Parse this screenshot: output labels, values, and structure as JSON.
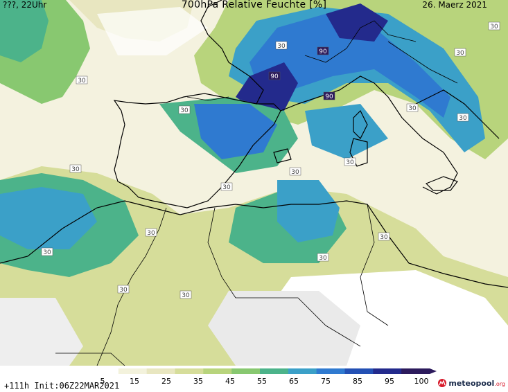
{
  "header": {
    "left": "???, 22Uhr",
    "title": "700hPa Relative Feuchte [%]",
    "date": "26. Maerz 2021"
  },
  "footer": {
    "init": "+111h Init:06Z22MAR2021",
    "logo_text": "meteopool",
    "logo_suffix": ".org"
  },
  "legend": {
    "ticks": [
      "5",
      "15",
      "25",
      "35",
      "45",
      "55",
      "65",
      "75",
      "85",
      "95",
      "100"
    ],
    "colors": [
      "#ffffff",
      "#f3f2dc",
      "#e8e6c0",
      "#d6dd9a",
      "#b8d47c",
      "#88c870",
      "#4cb38a",
      "#3ba0c8",
      "#2f7ad0",
      "#2350b4",
      "#232a8c",
      "#2c1a5c"
    ]
  },
  "map": {
    "contour_labels": {
      "c1": "30",
      "c2": "30",
      "c3": "30",
      "c4": "30",
      "c5": "30",
      "c6": "30",
      "c7": "30",
      "c8": "30",
      "c9": "30",
      "c10": "30",
      "c11": "30",
      "c12": "30",
      "c13": "30",
      "c14": "30",
      "c15": "30",
      "c16": "30",
      "c17": "30",
      "c18": "90",
      "c19": "90",
      "c20": "90"
    }
  }
}
